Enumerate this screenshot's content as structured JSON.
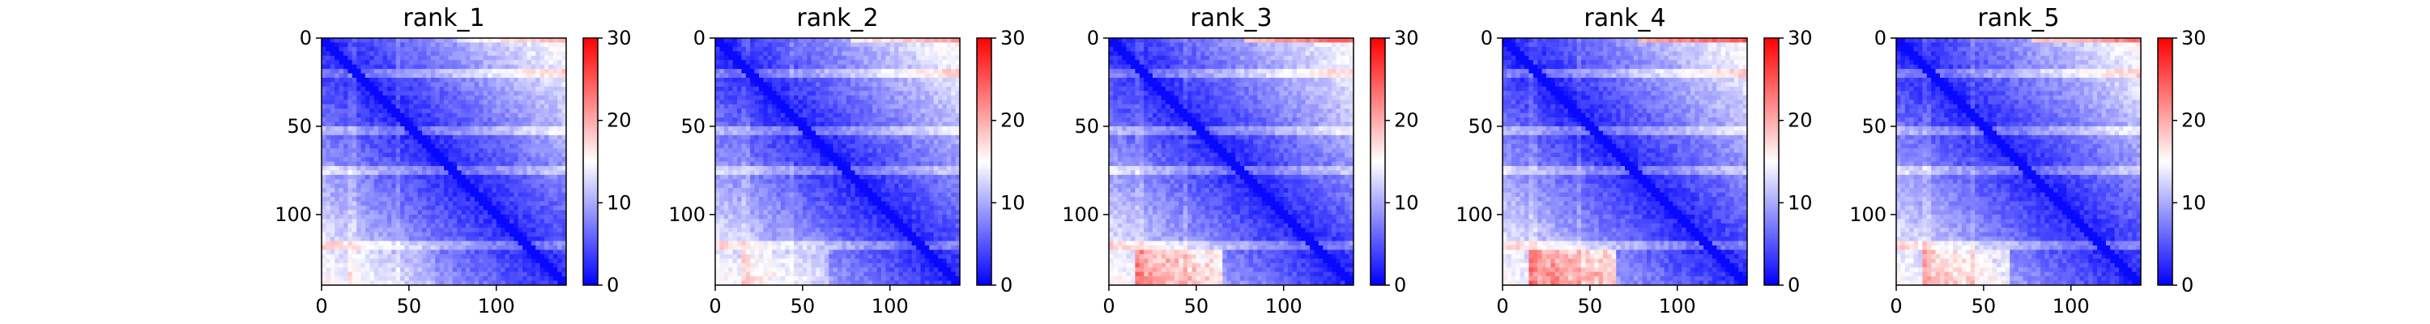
{
  "chart_data": [
    {
      "type": "heatmap",
      "title": "rank_1",
      "matrix_size": 140,
      "xticks": [
        "0",
        "50",
        "100"
      ],
      "yticks": [
        "0",
        "50",
        "100"
      ],
      "xlim": [
        0,
        140
      ],
      "ylim": [
        140,
        0
      ],
      "colorbar": {
        "min": 0,
        "max": 30,
        "ticks": [
          "0",
          "10",
          "20",
          "30"
        ]
      },
      "bottom_red_intensity": 0.15
    },
    {
      "type": "heatmap",
      "title": "rank_2",
      "matrix_size": 140,
      "xticks": [
        "0",
        "50",
        "100"
      ],
      "yticks": [
        "0",
        "50",
        "100"
      ],
      "xlim": [
        0,
        140
      ],
      "ylim": [
        140,
        0
      ],
      "colorbar": {
        "min": 0,
        "max": 30,
        "ticks": [
          "0",
          "10",
          "20",
          "30"
        ]
      },
      "bottom_red_intensity": 0.3
    },
    {
      "type": "heatmap",
      "title": "rank_3",
      "matrix_size": 140,
      "xticks": [
        "0",
        "50",
        "100"
      ],
      "yticks": [
        "0",
        "50",
        "100"
      ],
      "xlim": [
        0,
        140
      ],
      "ylim": [
        140,
        0
      ],
      "colorbar": {
        "min": 0,
        "max": 30,
        "ticks": [
          "0",
          "10",
          "20",
          "30"
        ]
      },
      "bottom_red_intensity": 0.75
    },
    {
      "type": "heatmap",
      "title": "rank_4",
      "matrix_size": 140,
      "xticks": [
        "0",
        "50",
        "100"
      ],
      "yticks": [
        "0",
        "50",
        "100"
      ],
      "xlim": [
        0,
        140
      ],
      "ylim": [
        140,
        0
      ],
      "colorbar": {
        "min": 0,
        "max": 30,
        "ticks": [
          "0",
          "10",
          "20",
          "30"
        ]
      },
      "bottom_red_intensity": 0.85
    },
    {
      "type": "heatmap",
      "title": "rank_5",
      "matrix_size": 140,
      "xticks": [
        "0",
        "50",
        "100"
      ],
      "yticks": [
        "0",
        "50",
        "100"
      ],
      "xlim": [
        0,
        140
      ],
      "ylim": [
        140,
        0
      ],
      "colorbar": {
        "min": 0,
        "max": 30,
        "ticks": [
          "0",
          "10",
          "20",
          "30"
        ]
      },
      "bottom_red_intensity": 0.55
    }
  ],
  "colors": {
    "low": "#0000ff",
    "mid": "#ffffff",
    "high": "#ff0000"
  }
}
